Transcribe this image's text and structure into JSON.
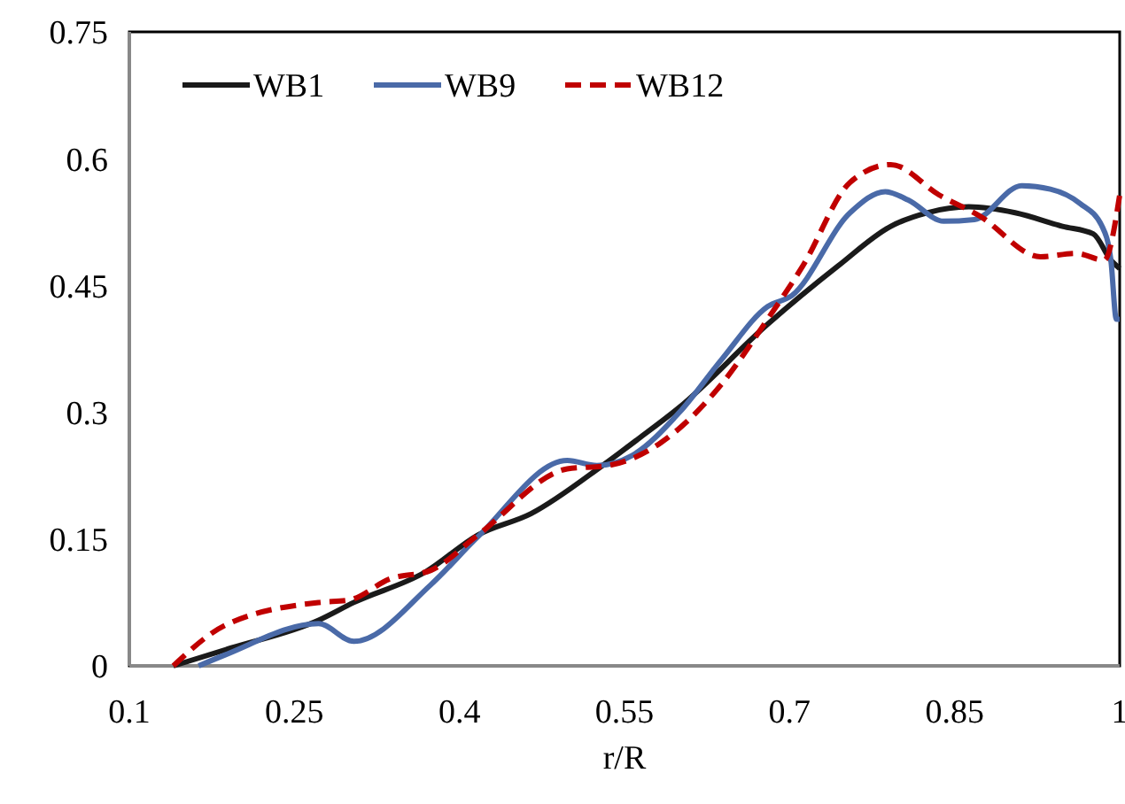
{
  "chart_data": {
    "type": "line",
    "xlabel": "r/R",
    "xlim": [
      0.1,
      1
    ],
    "xticks": [
      0.1,
      0.25,
      0.4,
      0.55,
      0.7,
      0.85,
      1
    ],
    "ylim": [
      0,
      0.75
    ],
    "yticks": [
      0,
      0.15,
      0.3,
      0.45,
      0.6,
      0.75
    ],
    "grid": false,
    "legend": "top left",
    "marker": "none",
    "series": [
      {
        "name": "WB1",
        "color": "#1a1a1a",
        "line_style": "solid",
        "x": [
          0.14,
          0.192,
          0.272,
          0.304,
          0.369,
          0.417,
          0.465,
          0.53,
          0.562,
          0.6,
          0.68,
          0.744,
          0.792,
          0.825,
          0.863,
          0.905,
          0.948,
          0.976,
          0.992,
          1.0
        ],
        "values": [
          0,
          0.021,
          0.054,
          0.075,
          0.111,
          0.155,
          0.18,
          0.237,
          0.268,
          0.306,
          0.404,
          0.473,
          0.52,
          0.536,
          0.543,
          0.536,
          0.52,
          0.511,
          0.48,
          0.47
        ]
      },
      {
        "name": "WB9",
        "color": "#4a6aa8",
        "line_style": "solid",
        "x": [
          0.163,
          0.187,
          0.272,
          0.304,
          0.374,
          0.417,
          0.498,
          0.525,
          0.557,
          0.6,
          0.638,
          0.68,
          0.702,
          0.755,
          0.787,
          0.808,
          0.84,
          0.868,
          0.911,
          0.937,
          0.964,
          0.984,
          0.992,
          0.997,
          1.0
        ],
        "values": [
          0,
          0.013,
          0.05,
          0.029,
          0.096,
          0.153,
          0.243,
          0.237,
          0.249,
          0.3,
          0.362,
          0.425,
          0.438,
          0.536,
          0.561,
          0.551,
          0.526,
          0.528,
          0.568,
          0.564,
          0.547,
          0.52,
          0.48,
          0.41,
          0.41
        ]
      },
      {
        "name": "WB12",
        "color": "#c00000",
        "line_style": "dashed",
        "x": [
          0.14,
          0.187,
          0.272,
          0.3,
          0.337,
          0.374,
          0.417,
          0.498,
          0.535,
          0.583,
          0.638,
          0.68,
          0.712,
          0.755,
          0.792,
          0.836,
          0.873,
          0.928,
          0.96,
          0.986,
          1.0
        ],
        "values": [
          0,
          0.048,
          0.075,
          0.078,
          0.103,
          0.113,
          0.155,
          0.233,
          0.237,
          0.264,
          0.333,
          0.41,
          0.473,
          0.572,
          0.593,
          0.557,
          0.532,
          0.484,
          0.488,
          0.48,
          0.557
        ]
      }
    ]
  }
}
